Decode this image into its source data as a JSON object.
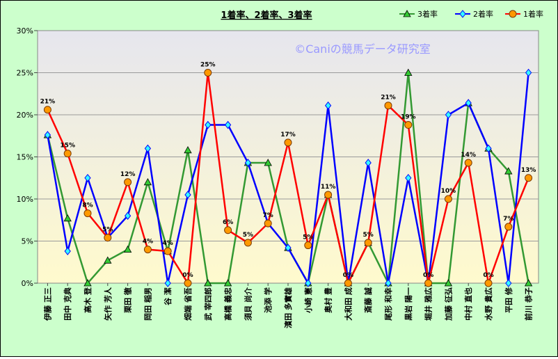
{
  "chart_data": {
    "type": "line",
    "title": "1着率、2着率、3着率",
    "watermark": "©Caniの競馬データ研究室",
    "ylim": [
      0,
      30
    ],
    "y_ticks": [
      "0%",
      "5%",
      "10%",
      "15%",
      "20%",
      "25%",
      "30%"
    ],
    "categories": [
      "伊藤 正三",
      "田中 克典",
      "高木 登",
      "矢作 芳人",
      "栗田 徹",
      "岡田 稲男",
      "谷 潔",
      "畑端 省吾",
      "武 宰四郎",
      "高橋 義忠",
      "須貝 尚介",
      "池添 学",
      "濱田 多實雄",
      "小崎 憲",
      "奥村 豊",
      "大和田 成",
      "斎藤 誠",
      "尾形 和幸",
      "黒岩 陽一",
      "堀井 雅広",
      "加藤 征弘",
      "中村 直也",
      "水野 貴広",
      "平田 修",
      "前川 恭子"
    ],
    "series": [
      {
        "name": "3着率",
        "color": "#339933",
        "marker": "triangle",
        "marker_color": "#33cc33",
        "values": [
          17.6,
          7.7,
          0,
          2.7,
          4.0,
          12.0,
          3.8,
          15.8,
          0,
          0,
          14.3,
          14.3,
          4.2,
          0,
          10.5,
          0,
          4.8,
          0,
          25.0,
          0,
          0,
          21.4,
          16.0,
          13.3,
          0
        ]
      },
      {
        "name": "2着率",
        "color": "#0000ff",
        "marker": "diamond",
        "marker_color": "#33ffff",
        "values": [
          17.6,
          3.8,
          12.5,
          5.4,
          8.0,
          16.0,
          0,
          10.5,
          18.8,
          18.8,
          14.3,
          7.1,
          4.2,
          0,
          21.1,
          0,
          14.3,
          0,
          12.5,
          0,
          20.0,
          21.4,
          16.0,
          0,
          25.0
        ]
      },
      {
        "name": "1着率",
        "color": "#ff0000",
        "marker": "circle",
        "marker_color": "#ff9900",
        "values": [
          20.6,
          15.4,
          8.3,
          5.4,
          12.0,
          4.0,
          3.8,
          0,
          25.0,
          6.3,
          4.8,
          7.1,
          16.7,
          4.5,
          10.5,
          0,
          4.8,
          21.1,
          18.8,
          0,
          10.0,
          14.3,
          0,
          6.7,
          12.5
        ],
        "labels": [
          "21%",
          "15%",
          "8%",
          "5%",
          "12%",
          "4%",
          "4%",
          "0%",
          "25%",
          "6%",
          "5%",
          "7%",
          "17%",
          "5%",
          "11%",
          "0%",
          "5%",
          "21%",
          "19%",
          "0%",
          "10%",
          "14%",
          "0%",
          "7%",
          "13%"
        ]
      }
    ],
    "legend_position": "top-right",
    "grid": "horizontal"
  }
}
